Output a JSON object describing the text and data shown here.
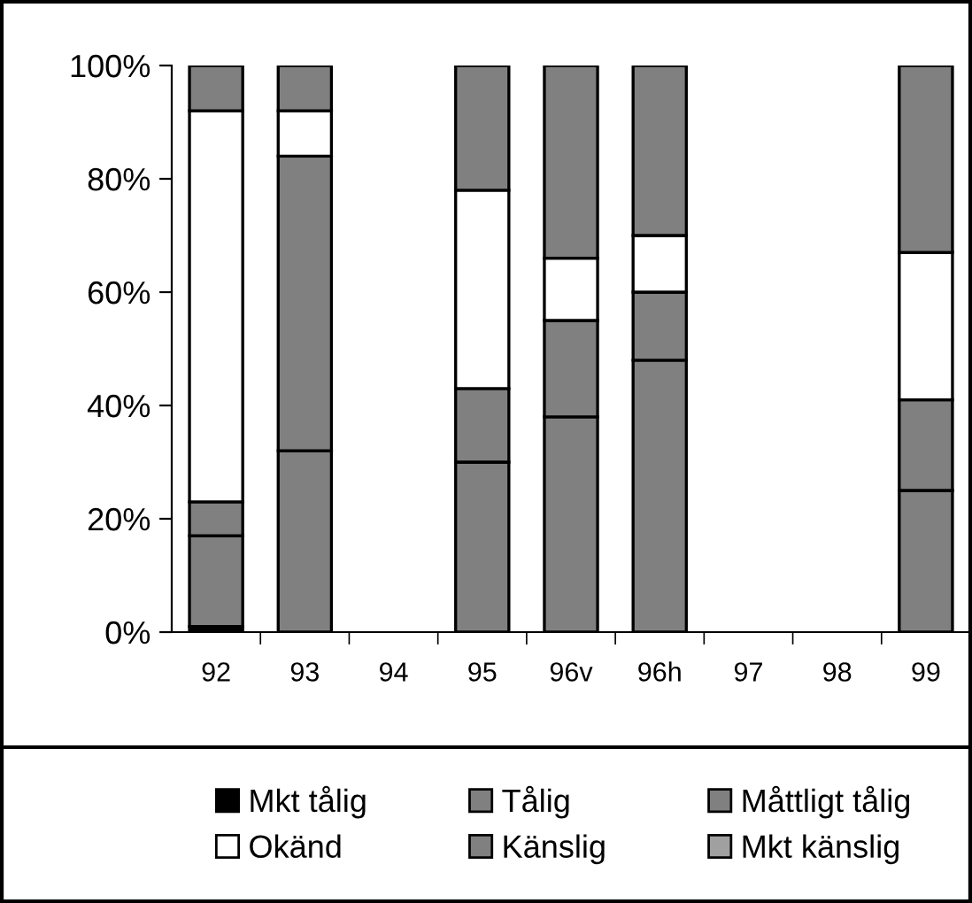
{
  "chart_data": {
    "type": "bar",
    "stacked": true,
    "categories": [
      "92",
      "93",
      "94",
      "95",
      "96v",
      "96h",
      "97",
      "98",
      "99"
    ],
    "series": [
      {
        "name": "Mkt tålig",
        "color": "#000000",
        "values": [
          1,
          null,
          null,
          null,
          null,
          null,
          null,
          null,
          null
        ]
      },
      {
        "name": "Tålig",
        "color": "#808080",
        "values": [
          16,
          32,
          null,
          30,
          38,
          48,
          null,
          null,
          25
        ]
      },
      {
        "name": "Måttligt tålig",
        "color": "#808080",
        "values": [
          6,
          52,
          null,
          13,
          17,
          12,
          null,
          null,
          16
        ]
      },
      {
        "name": "Okänd",
        "color": "#ffffff",
        "values": [
          69,
          8,
          null,
          35,
          11,
          10,
          null,
          null,
          26
        ]
      },
      {
        "name": "Känslig",
        "color": "#808080",
        "values": [
          8,
          8,
          null,
          22,
          34,
          30,
          null,
          null,
          33
        ]
      },
      {
        "name": "Mkt känslig",
        "color": "#a0a0a0",
        "values": [
          null,
          null,
          null,
          null,
          null,
          null,
          null,
          null,
          null
        ]
      }
    ],
    "ylim": [
      0,
      100
    ],
    "yticks": [
      {
        "value": 0,
        "label": "0%"
      },
      {
        "value": 20,
        "label": "20%"
      },
      {
        "value": 40,
        "label": "40%"
      },
      {
        "value": 60,
        "label": "60%"
      },
      {
        "value": 80,
        "label": "80%"
      },
      {
        "value": 100,
        "label": "100%"
      }
    ],
    "grid": false,
    "legend": "bottom"
  }
}
